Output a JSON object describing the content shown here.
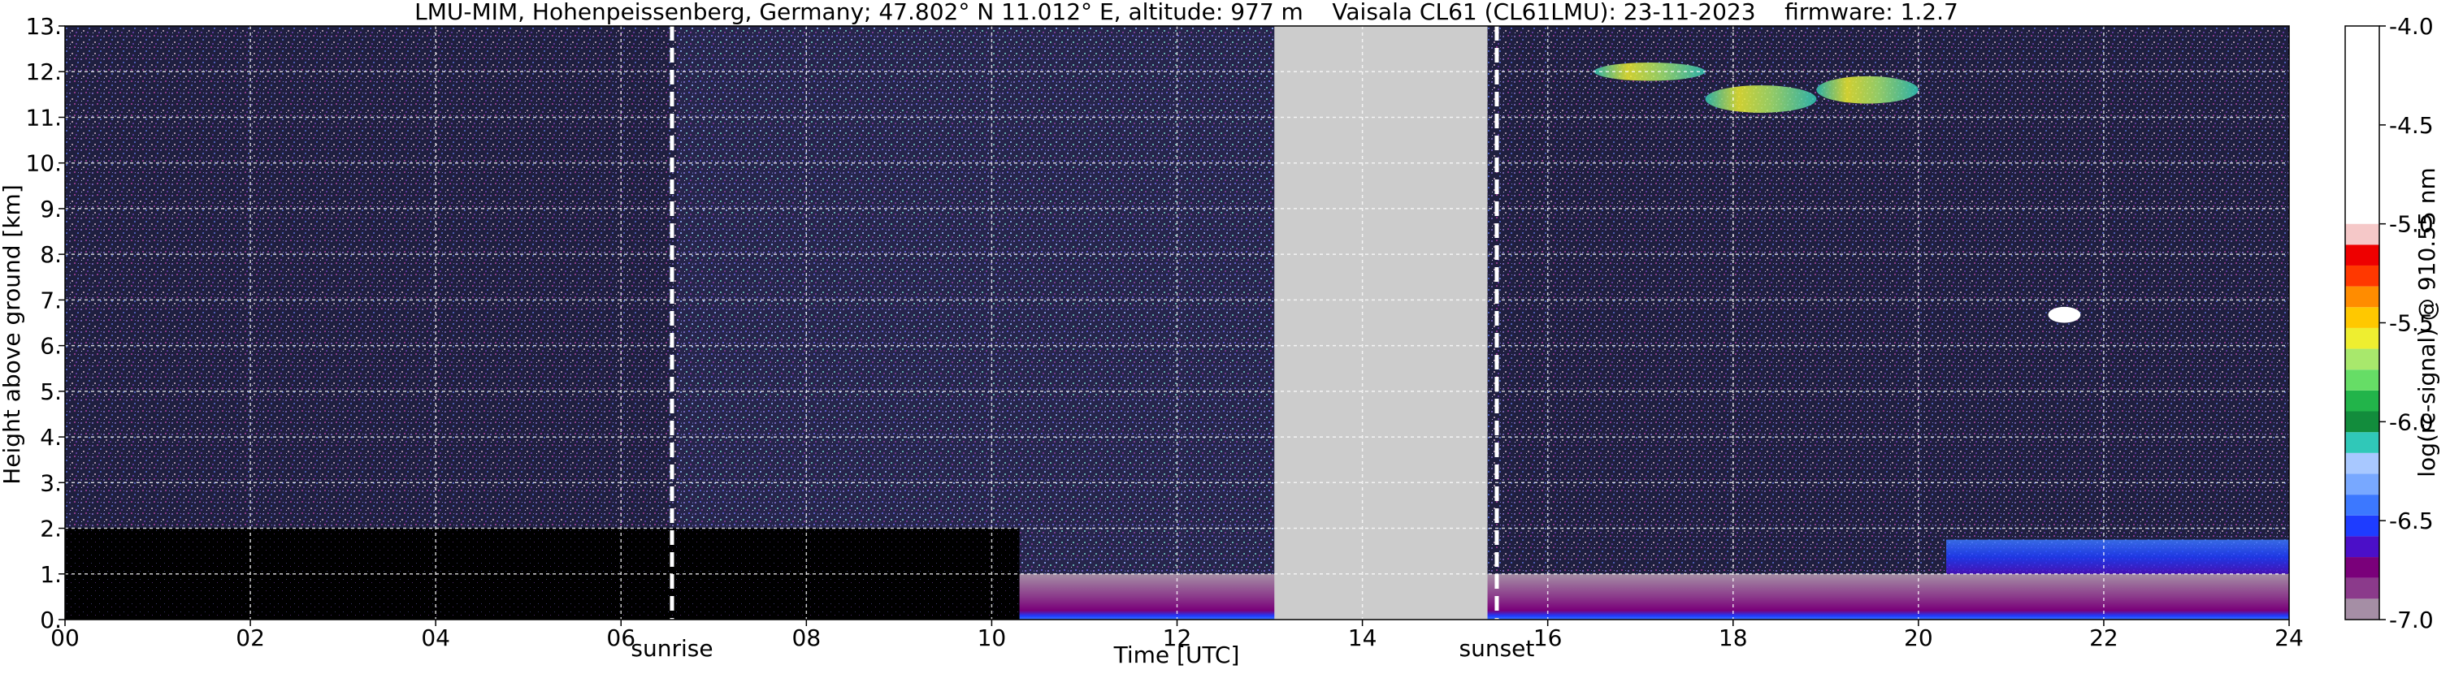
{
  "chart_data": {
    "type": "heatmap",
    "title": "LMU-MIM, Hohenpeissenberg, Germany; 47.802° N 11.012° E, altitude: 977 m    Vaisala CL61 (CL61LMU): 23-11-2023    firmware: 1.2.7",
    "xlabel": "Time [UTC]",
    "ylabel": "Height above ground [km]",
    "colorbar_label": "log(rc-signal) @ 910.55 nm",
    "xlim": [
      0,
      24
    ],
    "ylim": [
      0,
      13
    ],
    "clim": [
      -7.0,
      -4.0
    ],
    "x_ticks": [
      "00",
      "02",
      "04",
      "06",
      "08",
      "10",
      "12",
      "14",
      "16",
      "18",
      "20",
      "22",
      "24"
    ],
    "x_tick_values": [
      0,
      2,
      4,
      6,
      8,
      10,
      12,
      14,
      16,
      18,
      20,
      22,
      24
    ],
    "y_ticks": [
      "0.",
      "1.",
      "2.",
      "3.",
      "4.",
      "5.",
      "6.",
      "7.",
      "8.",
      "9.",
      "10.",
      "11.",
      "12.",
      "13."
    ],
    "y_tick_values": [
      0,
      1,
      2,
      3,
      4,
      5,
      6,
      7,
      8,
      9,
      10,
      11,
      12,
      13
    ],
    "colorbar_ticks": [
      "-4.0",
      "-4.5",
      "-5.0",
      "-5.5",
      "-6.0",
      "-6.5",
      "-7.0"
    ],
    "colorbar_tick_values": [
      -4.0,
      -4.5,
      -5.0,
      -5.5,
      -6.0,
      -6.5,
      -7.0
    ],
    "grid": true,
    "markers": [
      {
        "label": "sunrise",
        "time": 6.55
      },
      {
        "label": "sunset",
        "time": 15.45
      }
    ],
    "missing_data": {
      "start": 13.05,
      "end": 15.35
    },
    "features": [
      {
        "kind": "boundary-layer",
        "start": 10.3,
        "end": 24.0,
        "bottom": 0.0,
        "top": 1.0
      },
      {
        "kind": "aerosol-layer",
        "start": 20.3,
        "end": 24.0,
        "bottom": 1.0,
        "top": 1.75
      },
      {
        "kind": "cirrus",
        "start": 16.5,
        "end": 17.7,
        "bottom": 11.8,
        "top": 12.2
      },
      {
        "kind": "cirrus",
        "start": 17.7,
        "end": 18.9,
        "bottom": 11.1,
        "top": 11.7
      },
      {
        "kind": "cirrus",
        "start": 18.9,
        "end": 20.0,
        "bottom": 11.3,
        "top": 11.9
      },
      {
        "kind": "cloud",
        "start": 21.4,
        "end": 21.75,
        "bottom": 6.5,
        "top": 6.85
      }
    ],
    "colormap": [
      "#a58ea5",
      "#8b3a8b",
      "#7a007a",
      "#4b0fc8",
      "#1e3cff",
      "#3c78ff",
      "#78a8ff",
      "#a8c8ff",
      "#30c8b8",
      "#128c3c",
      "#22b44a",
      "#66dd66",
      "#a8e86c",
      "#eeee30",
      "#ffc800",
      "#ff8c00",
      "#ff3800",
      "#ee0000",
      "#f5c8c8",
      "#ffffff"
    ]
  }
}
